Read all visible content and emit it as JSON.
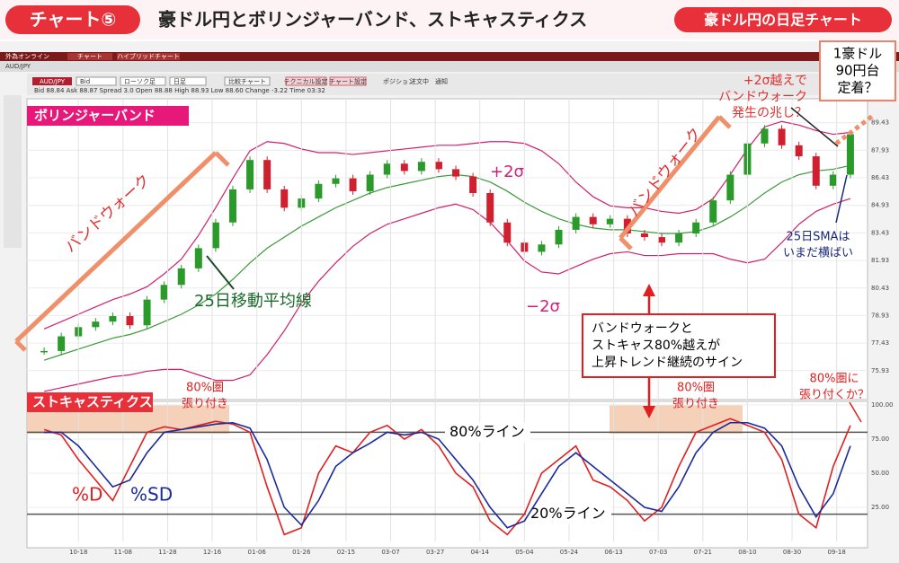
{
  "header": {
    "badge": "チャート⑤",
    "title": "豪ドル円とボリンジャーバンド、ストキャスティクス",
    "tag": "豪ドル円の日足チャート"
  },
  "app": {
    "brand": "外為オンライン",
    "tabs": [
      "チャート",
      "ハイブリッドチャート"
    ],
    "symbol": "AUD/JPY",
    "selectors": [
      "AUD/JPY",
      "Bid",
      "ローソク足",
      "日足"
    ],
    "buttons": [
      "比較チャート",
      "テクニカル設定",
      "チャート設定"
    ],
    "toggles": [
      "ポジション",
      "注文中",
      "通知"
    ],
    "quote": "Bid  88.84   Ask  88.87   Spread  3.0   Open  88.88   High  88.93   Low  88.60   Change  -3.22   Time  03:32"
  },
  "chart_data": [
    {
      "type": "candlestick",
      "title": "ボリンジャーバンド",
      "color_up": "#2a9a2a",
      "color_down": "#d02030",
      "values": [
        77.0,
        77.8,
        78.3,
        78.6,
        78.9,
        78.4,
        79.8,
        80.6,
        81.5,
        82.6,
        84.0,
        85.8,
        87.4,
        85.8,
        84.8,
        85.3,
        86.1,
        86.4,
        85.7,
        86.6,
        87.2,
        86.8,
        87.3,
        86.9,
        86.5,
        85.6,
        84.0,
        82.9,
        82.4,
        82.8,
        83.6,
        84.3,
        83.9,
        84.2,
        83.4,
        83.2,
        82.9,
        83.4,
        84.0,
        85.2,
        86.6,
        88.3,
        89.1,
        88.2,
        87.6,
        86.0,
        86.6,
        88.8
      ],
      "series": [
        {
          "name": "+2σ",
          "color": "#d0206a",
          "values": [
            78.2,
            78.6,
            79.0,
            79.4,
            79.8,
            80.1,
            80.5,
            81.2,
            82.0,
            83.3,
            84.8,
            86.4,
            87.9,
            88.4,
            88.3,
            88.0,
            87.8,
            87.8,
            87.7,
            87.8,
            87.9,
            88.0,
            88.1,
            88.2,
            88.2,
            88.3,
            88.4,
            88.4,
            88.3,
            87.9,
            87.2,
            86.2,
            85.4,
            84.9,
            84.8,
            84.8,
            84.6,
            84.5,
            84.7,
            85.3,
            86.6,
            88.0,
            89.2,
            89.5,
            89.3,
            89.0,
            88.8,
            88.9
          ]
        },
        {
          "name": "25日移動平均線",
          "color": "#3a9a3a",
          "values": [
            76.5,
            76.8,
            77.1,
            77.4,
            77.7,
            77.9,
            78.2,
            78.6,
            79.0,
            79.5,
            80.1,
            80.9,
            81.8,
            82.6,
            83.2,
            83.8,
            84.3,
            84.8,
            85.2,
            85.6,
            85.9,
            86.1,
            86.3,
            86.5,
            86.6,
            86.5,
            86.2,
            85.7,
            85.1,
            84.6,
            84.2,
            83.9,
            83.7,
            83.6,
            83.6,
            83.5,
            83.4,
            83.4,
            83.5,
            83.8,
            84.3,
            84.9,
            85.6,
            86.2,
            86.6,
            86.8,
            86.9,
            87.1
          ]
        },
        {
          "name": "−2σ",
          "color": "#d0206a",
          "values": [
            74.8,
            75.0,
            75.2,
            75.4,
            75.6,
            75.7,
            75.9,
            76.0,
            76.0,
            75.7,
            75.4,
            75.4,
            75.7,
            76.8,
            78.1,
            79.6,
            80.8,
            81.8,
            82.7,
            83.4,
            83.9,
            84.2,
            84.5,
            84.8,
            85.0,
            84.7,
            84.0,
            83.0,
            81.9,
            81.3,
            81.2,
            81.6,
            82.0,
            82.3,
            82.4,
            82.2,
            82.2,
            82.3,
            82.3,
            82.3,
            82.0,
            81.8,
            82.0,
            82.9,
            83.9,
            84.6,
            85.0,
            85.3
          ]
        }
      ],
      "xlim": [
        -1,
        48
      ],
      "ylim": [
        74.6,
        90.0
      ],
      "yticks": [
        89.43,
        87.93,
        86.43,
        84.93,
        83.43,
        81.93,
        80.43,
        78.93,
        77.43,
        75.93
      ],
      "grid": true
    },
    {
      "type": "line",
      "title": "ストキャスティクス",
      "series": [
        {
          "name": "%D",
          "color": "#e02020",
          "values": [
            82,
            78,
            60,
            45,
            30,
            55,
            80,
            84,
            82,
            85,
            88,
            86,
            80,
            40,
            5,
            10,
            50,
            70,
            65,
            80,
            85,
            75,
            82,
            70,
            50,
            40,
            15,
            5,
            20,
            50,
            60,
            70,
            45,
            40,
            30,
            15,
            25,
            55,
            80,
            85,
            90,
            85,
            80,
            60,
            20,
            10,
            55,
            85
          ]
        },
        {
          "name": "%SD",
          "color": "#1a2a9a",
          "values": [
            80,
            80,
            70,
            55,
            40,
            45,
            65,
            80,
            82,
            84,
            86,
            87,
            83,
            60,
            25,
            12,
            30,
            55,
            65,
            72,
            80,
            78,
            80,
            75,
            60,
            45,
            25,
            10,
            15,
            35,
            55,
            65,
            55,
            45,
            35,
            25,
            22,
            40,
            65,
            80,
            87,
            87,
            83,
            70,
            40,
            18,
            35,
            70
          ]
        }
      ],
      "xlim": [
        -1,
        48
      ],
      "ylim": [
        0,
        100
      ],
      "yticks": [
        {
          "value": 100,
          "label": "100.00"
        },
        {
          "value": 75,
          "label": "75.00"
        },
        {
          "value": 50,
          "label": "50.00"
        },
        {
          "value": 25,
          "label": "25.00"
        }
      ],
      "xticks": [
        {
          "value": 2.0,
          "label": "10-18"
        },
        {
          "value": 4.6,
          "label": "11-08"
        },
        {
          "value": 7.2,
          "label": "11-28"
        },
        {
          "value": 9.8,
          "label": "12-16"
        },
        {
          "value": 12.4,
          "label": "01-06"
        },
        {
          "value": 15.0,
          "label": "01-26"
        },
        {
          "value": 17.6,
          "label": "02-15"
        },
        {
          "value": 20.2,
          "label": "03-07"
        },
        {
          "value": 22.8,
          "label": "03-27"
        },
        {
          "value": 25.4,
          "label": "04-14"
        },
        {
          "value": 28.0,
          "label": "05-04"
        },
        {
          "value": 30.6,
          "label": "05-24"
        },
        {
          "value": 33.2,
          "label": "06-13"
        },
        {
          "value": 35.8,
          "label": "07-03"
        },
        {
          "value": 38.4,
          "label": "07-21"
        },
        {
          "value": 41.0,
          "label": "08-10"
        },
        {
          "value": 43.6,
          "label": "08-30"
        },
        {
          "value": 46.2,
          "label": "09-18"
        }
      ],
      "hlines": [
        {
          "value": 80,
          "label": "80%ライン"
        },
        {
          "value": 20,
          "label": "20%ライン"
        }
      ],
      "grid": true
    }
  ],
  "annotations": {
    "bandwalk_left": "バンドウォーク",
    "bandwalk_right": "バンドウォーク",
    "over2sigma": [
      "+2σ越えで",
      "バンドウォーク",
      "発生の兆し？"
    ],
    "aud90": [
      "1豪ドル",
      "90円台",
      "定着？"
    ],
    "sma_flat": [
      "25日SMAは",
      "いまだ横ばい"
    ],
    "signal": [
      "バンドウォークと",
      "ストキャス80%越えが",
      "上昇トレンド継続のサイン"
    ],
    "stick_left": [
      "80%圏",
      "張り付き"
    ],
    "stick_mid": [
      "80%圏",
      "張り付き"
    ],
    "stick_right": [
      "80%圏に",
      "張り付くか？"
    ]
  }
}
